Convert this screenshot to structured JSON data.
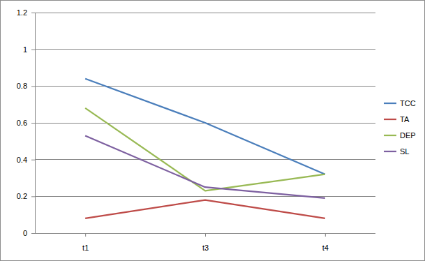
{
  "chart_data": {
    "type": "line",
    "categories": [
      "t1",
      "t3",
      "t4"
    ],
    "series": [
      {
        "name": "TCC",
        "color": "#4a7ebb",
        "values": [
          0.84,
          0.6,
          0.32
        ]
      },
      {
        "name": "TA",
        "color": "#be4b48",
        "values": [
          0.08,
          0.18,
          0.08
        ]
      },
      {
        "name": "DEP",
        "color": "#98b954",
        "values": [
          0.68,
          0.23,
          0.32
        ]
      },
      {
        "name": "SL",
        "color": "#7d60a0",
        "values": [
          0.53,
          0.25,
          0.19
        ]
      }
    ],
    "ylim": [
      0,
      1.2
    ],
    "yticks": [
      0,
      0.2,
      0.4,
      0.6,
      0.8,
      1,
      1.2
    ],
    "grid": true,
    "legend": "right"
  }
}
